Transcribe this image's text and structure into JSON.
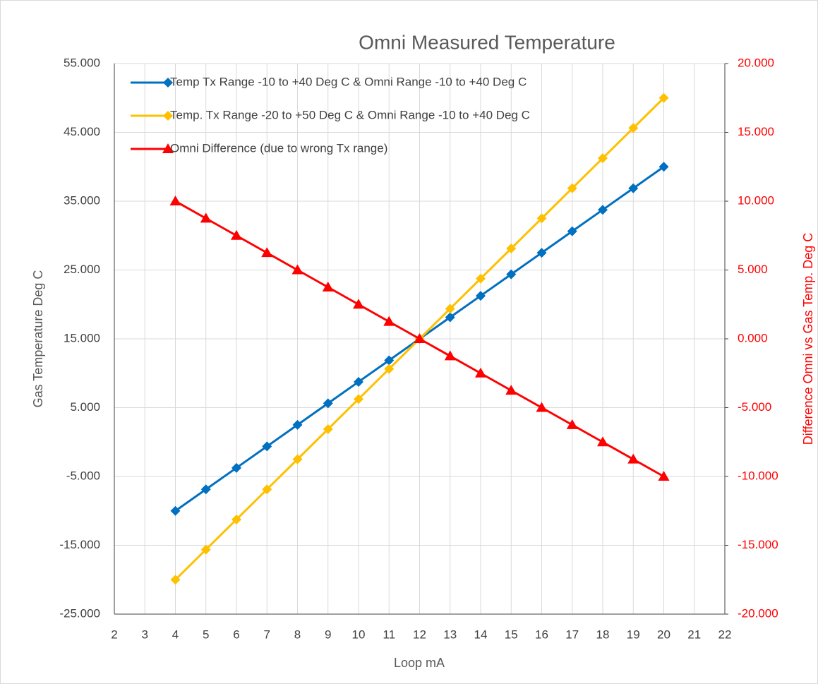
{
  "chart_data": {
    "type": "line",
    "title": "Omni Measured Temperature",
    "x_label": "Loop mA",
    "y_label": "Gas Temperature Deg C",
    "y2_label": "Difference Omni vs Gas Temp. Deg C",
    "x": [
      4,
      5,
      6,
      7,
      8,
      9,
      10,
      11,
      12,
      13,
      14,
      15,
      16,
      17,
      18,
      19,
      20
    ],
    "series": [
      {
        "name": "Temp Tx Range  -10 to +40 Deg C &  Omni Range  -10 to +40 Deg C",
        "color": "#0070c0",
        "marker": "diamond",
        "values": [
          -10,
          -6.875,
          -3.75,
          -0.625,
          2.5,
          5.625,
          8.75,
          11.875,
          15,
          18.125,
          21.25,
          24.375,
          27.5,
          30.625,
          33.75,
          36.875,
          40
        ]
      },
      {
        "name": "Temp. Tx Range  -20 to +50 Deg C &  Omni Range  -10 to +40 Deg C",
        "color": "#ffc000",
        "marker": "diamond",
        "values": [
          -20,
          -15.625,
          -11.25,
          -6.875,
          -2.5,
          1.875,
          6.25,
          10.625,
          15,
          19.375,
          23.75,
          28.125,
          32.5,
          36.875,
          41.25,
          45.625,
          50
        ]
      },
      {
        "name": "Omni Difference (due to wrong Tx range)",
        "color": "#ff0000",
        "marker": "triangle",
        "axis": "y2",
        "values": [
          10,
          8.75,
          7.5,
          6.25,
          5,
          3.75,
          2.5,
          1.25,
          0,
          -1.25,
          -2.5,
          -3.75,
          -5,
          -6.25,
          -7.5,
          -8.75,
          -10
        ]
      }
    ],
    "xlim": [
      2,
      22
    ],
    "xticks": [
      2,
      3,
      4,
      5,
      6,
      7,
      8,
      9,
      10,
      11,
      12,
      13,
      14,
      15,
      16,
      17,
      18,
      19,
      20,
      21,
      22
    ],
    "ylim": [
      -25,
      55
    ],
    "yticks": [
      {
        "value": -25,
        "label": "-25.000"
      },
      {
        "value": -15,
        "label": "-15.000"
      },
      {
        "value": -5,
        "label": "-5.000"
      },
      {
        "value": 5,
        "label": "5.000"
      },
      {
        "value": 15,
        "label": "15.000"
      },
      {
        "value": 25,
        "label": "25.000"
      },
      {
        "value": 35,
        "label": "35.000"
      },
      {
        "value": 45,
        "label": "45.000"
      },
      {
        "value": 55,
        "label": "55.000"
      }
    ],
    "y2lim": [
      -20,
      20
    ],
    "y2ticks": [
      {
        "value": -20,
        "label": "-20.000"
      },
      {
        "value": -15,
        "label": "-15.000"
      },
      {
        "value": -10,
        "label": "-10.000"
      },
      {
        "value": -5,
        "label": "-5.000"
      },
      {
        "value": 0,
        "label": "0.000"
      },
      {
        "value": 5,
        "label": "5.000"
      },
      {
        "value": 10,
        "label": "10.000"
      },
      {
        "value": 15,
        "label": "15.000"
      },
      {
        "value": 20,
        "label": "20.000"
      }
    ],
    "y2_color": "#ff0000",
    "grid": true,
    "legend": "upper-left"
  }
}
